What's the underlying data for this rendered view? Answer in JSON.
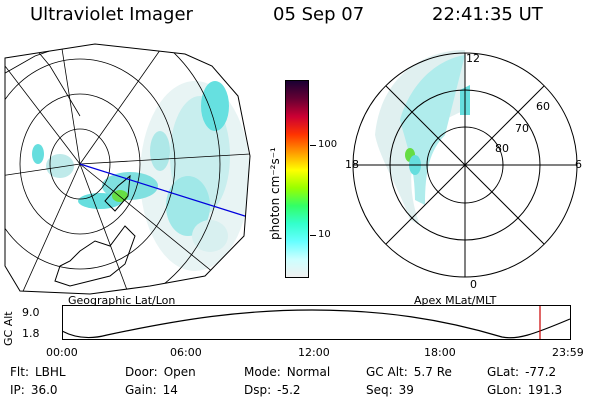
{
  "header": {
    "instrument": "Ultraviolet Imager",
    "date": "05 Sep 07",
    "time": "22:41:35 UT"
  },
  "panels": {
    "left_caption": "Geographic Lat/Lon",
    "right_caption": "Apex MLat/MLT"
  },
  "colorbar": {
    "unit_label": "photon cm⁻²s⁻¹",
    "ticks": [
      {
        "value": 100,
        "label": "100"
      },
      {
        "value": 10,
        "label": "10"
      }
    ],
    "scale": "log",
    "stops": [
      "#1a0033",
      "#660033",
      "#cc0033",
      "#ff3300",
      "#ff9900",
      "#ffff00",
      "#99ff00",
      "#33ff66",
      "#33ffcc",
      "#66ffff",
      "#ccffff",
      "#f0f0f0"
    ]
  },
  "polar_grid": {
    "mlt_labels": {
      "top": "12",
      "left": "18",
      "right": "6",
      "bottom": "0"
    },
    "mlat_labels": [
      "60",
      "70",
      "80"
    ]
  },
  "altitude_plot": {
    "ylabel": "GC Alt",
    "yticks": [
      "9.0",
      "1.8"
    ],
    "xticks": [
      "00:00",
      "06:00",
      "12:00",
      "18:00",
      "23:59"
    ],
    "current_marker_color": "#cc0000"
  },
  "info_rows": [
    [
      {
        "label": "Flt:",
        "value": "LBHL"
      },
      {
        "label": "Door:",
        "value": "Open"
      },
      {
        "label": "Mode:",
        "value": "Normal"
      },
      {
        "label": "GC Alt:",
        "value": "5.7 Re"
      },
      {
        "label": "GLat:",
        "value": "-77.2"
      }
    ],
    [
      {
        "label": "IP:",
        "value": "36.0"
      },
      {
        "label": "Gain:",
        "value": "14"
      },
      {
        "label": "Dsp:",
        "value": "-5.2"
      },
      {
        "label": "Seq:",
        "value": "39"
      },
      {
        "label": "GLon:",
        "value": "191.3"
      }
    ]
  ]
}
